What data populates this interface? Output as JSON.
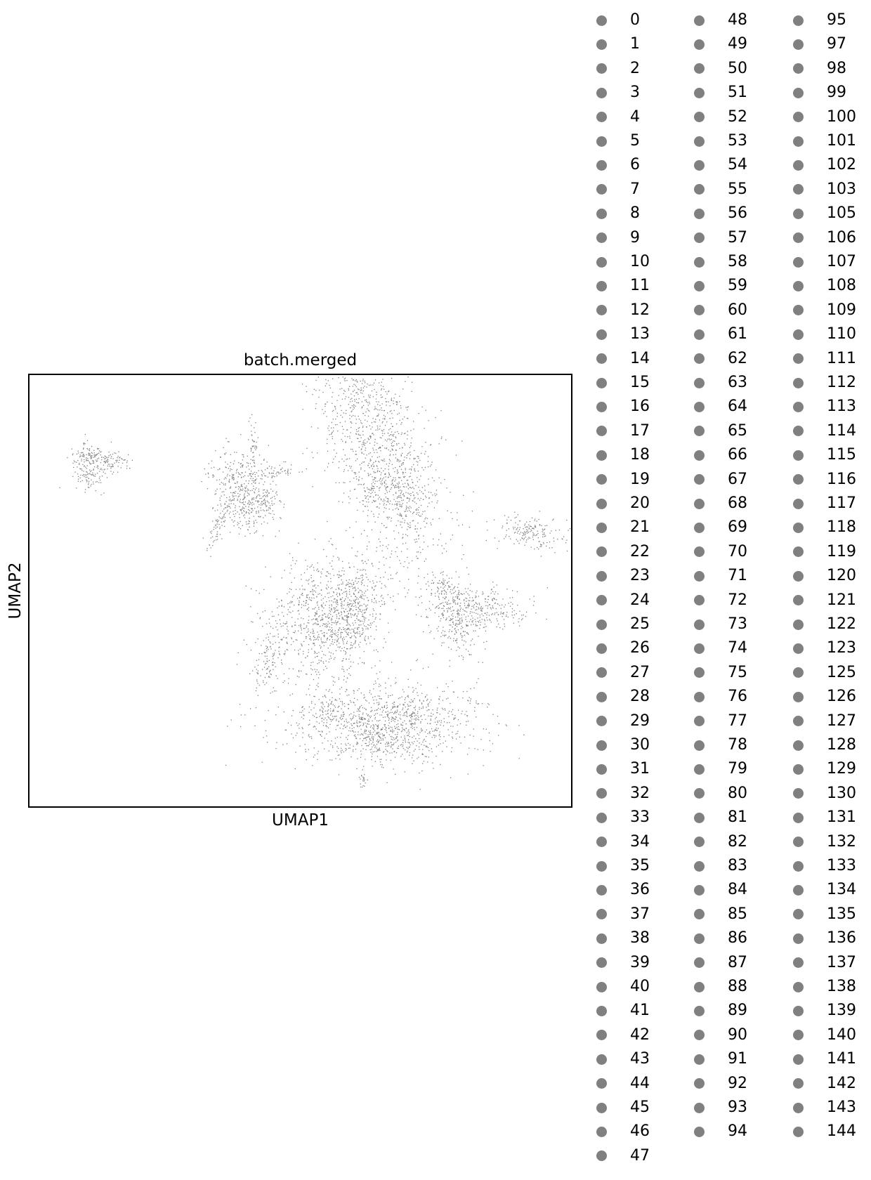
{
  "chart_data": {
    "type": "scatter",
    "title": "batch.merged",
    "xlabel": "UMAP1",
    "ylabel": "UMAP2",
    "grid": false,
    "ticks": "none",
    "point_color": "#808080",
    "legend_placement": "right",
    "legend_columns": 3,
    "legend_marker_color": "#808080",
    "legend_entries": [
      "0",
      "1",
      "2",
      "3",
      "4",
      "5",
      "6",
      "7",
      "8",
      "9",
      "10",
      "11",
      "12",
      "13",
      "14",
      "15",
      "16",
      "17",
      "18",
      "19",
      "20",
      "21",
      "22",
      "23",
      "24",
      "25",
      "26",
      "27",
      "28",
      "29",
      "30",
      "31",
      "32",
      "33",
      "34",
      "35",
      "36",
      "37",
      "38",
      "39",
      "40",
      "41",
      "42",
      "43",
      "44",
      "45",
      "46",
      "47",
      "48",
      "49",
      "50",
      "51",
      "52",
      "53",
      "54",
      "55",
      "56",
      "57",
      "58",
      "59",
      "60",
      "61",
      "62",
      "63",
      "64",
      "65",
      "66",
      "67",
      "68",
      "69",
      "70",
      "71",
      "72",
      "73",
      "74",
      "75",
      "76",
      "77",
      "78",
      "79",
      "80",
      "81",
      "82",
      "83",
      "84",
      "85",
      "86",
      "87",
      "88",
      "89",
      "90",
      "91",
      "92",
      "93",
      "94",
      "95",
      "97",
      "98",
      "99",
      "100",
      "101",
      "102",
      "103",
      "105",
      "106",
      "107",
      "108",
      "109",
      "110",
      "111",
      "112",
      "113",
      "114",
      "115",
      "116",
      "117",
      "118",
      "119",
      "120",
      "121",
      "122",
      "123",
      "125",
      "126",
      "127",
      "128",
      "129",
      "130",
      "131",
      "132",
      "133",
      "134",
      "135",
      "136",
      "137",
      "138",
      "139",
      "140",
      "141",
      "142",
      "143",
      "144"
    ]
  }
}
